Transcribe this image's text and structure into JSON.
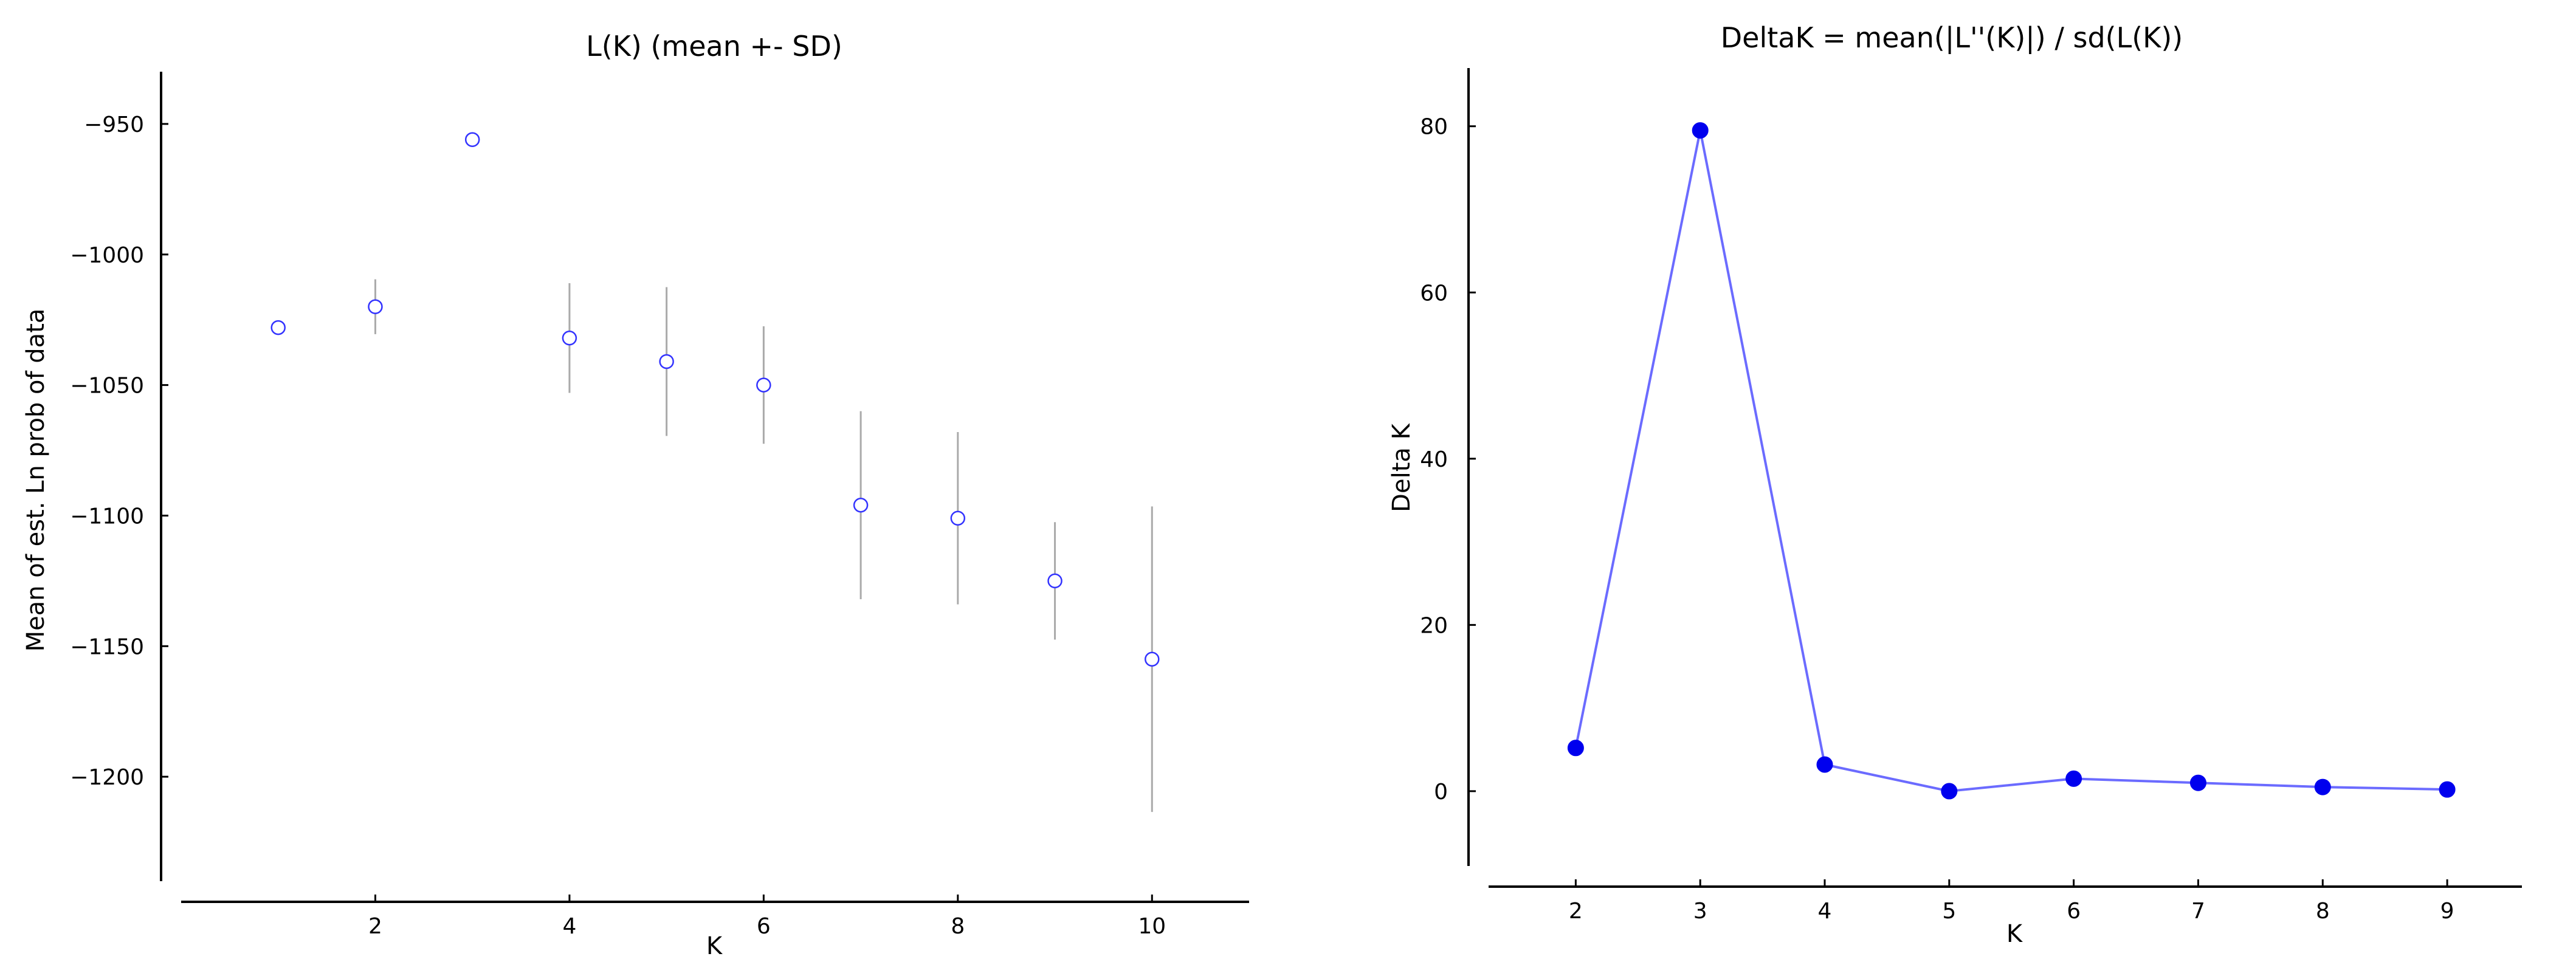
{
  "chart_data": [
    {
      "type": "scatter",
      "title": "L(K) (mean +- SD)",
      "xlabel": "K",
      "ylabel": "Mean of est. Ln prob of data",
      "xlim": [
        0,
        11
      ],
      "ylim": [
        -1240,
        -930
      ],
      "xticks": [
        2,
        4,
        6,
        8,
        10
      ],
      "yticks": [
        -950,
        -1000,
        -1050,
        -1100,
        -1150,
        -1200
      ],
      "marker_color": "#3333ff",
      "errorbar_color": "#aaaaaa",
      "series": [
        {
          "x": [
            1,
            2,
            3,
            4,
            5,
            6,
            7,
            8,
            9,
            10
          ],
          "y": [
            -1028,
            -1020,
            -956,
            -1032,
            -1041,
            -1050,
            -1096,
            -1101,
            -1125,
            -1155
          ],
          "sd": [
            0,
            10.5,
            0,
            21,
            28.5,
            22.5,
            36,
            33,
            22.5,
            58.5
          ]
        }
      ]
    },
    {
      "type": "line",
      "title": "DeltaK = mean(|L''(K)|) / sd(L(K))",
      "xlabel": "K",
      "ylabel": "Delta K",
      "xlim": [
        1.3,
        9.6
      ],
      "ylim": [
        -9,
        87
      ],
      "xticks": [
        2,
        3,
        4,
        5,
        6,
        7,
        8,
        9
      ],
      "yticks": [
        0,
        20,
        40,
        60,
        80
      ],
      "line_color": "#6b6bff",
      "marker_color": "#0000ee",
      "series": [
        {
          "x": [
            2,
            3,
            4,
            5,
            6,
            7,
            8,
            9
          ],
          "y": [
            5.2,
            79.5,
            3.2,
            0,
            1.5,
            1.0,
            0.5,
            0.2
          ]
        }
      ]
    }
  ]
}
